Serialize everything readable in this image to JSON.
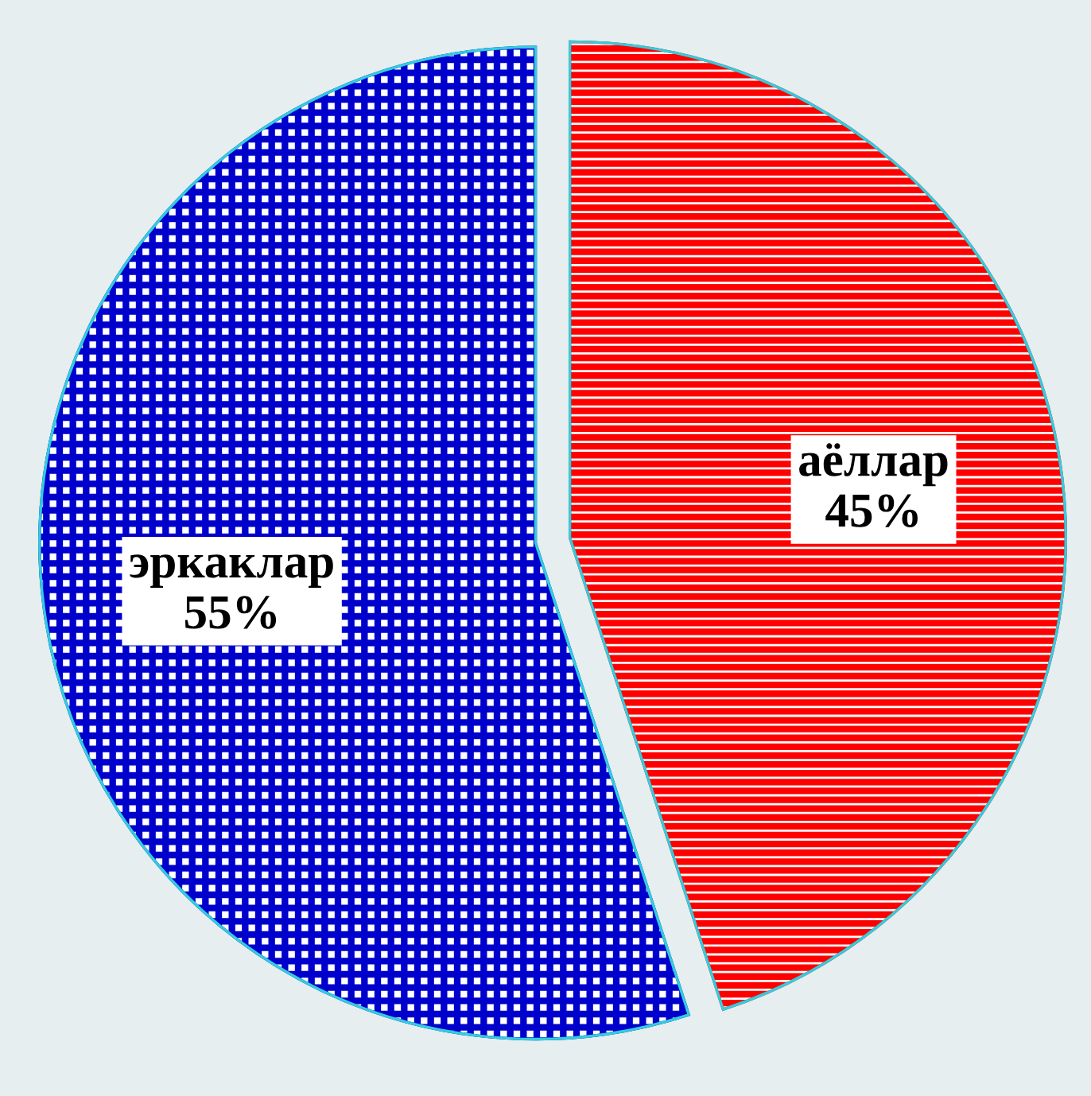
{
  "chart_data": {
    "type": "pie",
    "categories": [
      "аёллар",
      "эркаклар"
    ],
    "values": [
      45,
      55
    ],
    "colors": [
      "#ff0000",
      "#0000cc"
    ],
    "value_labels": [
      "45%",
      "55%"
    ],
    "legend": false
  }
}
